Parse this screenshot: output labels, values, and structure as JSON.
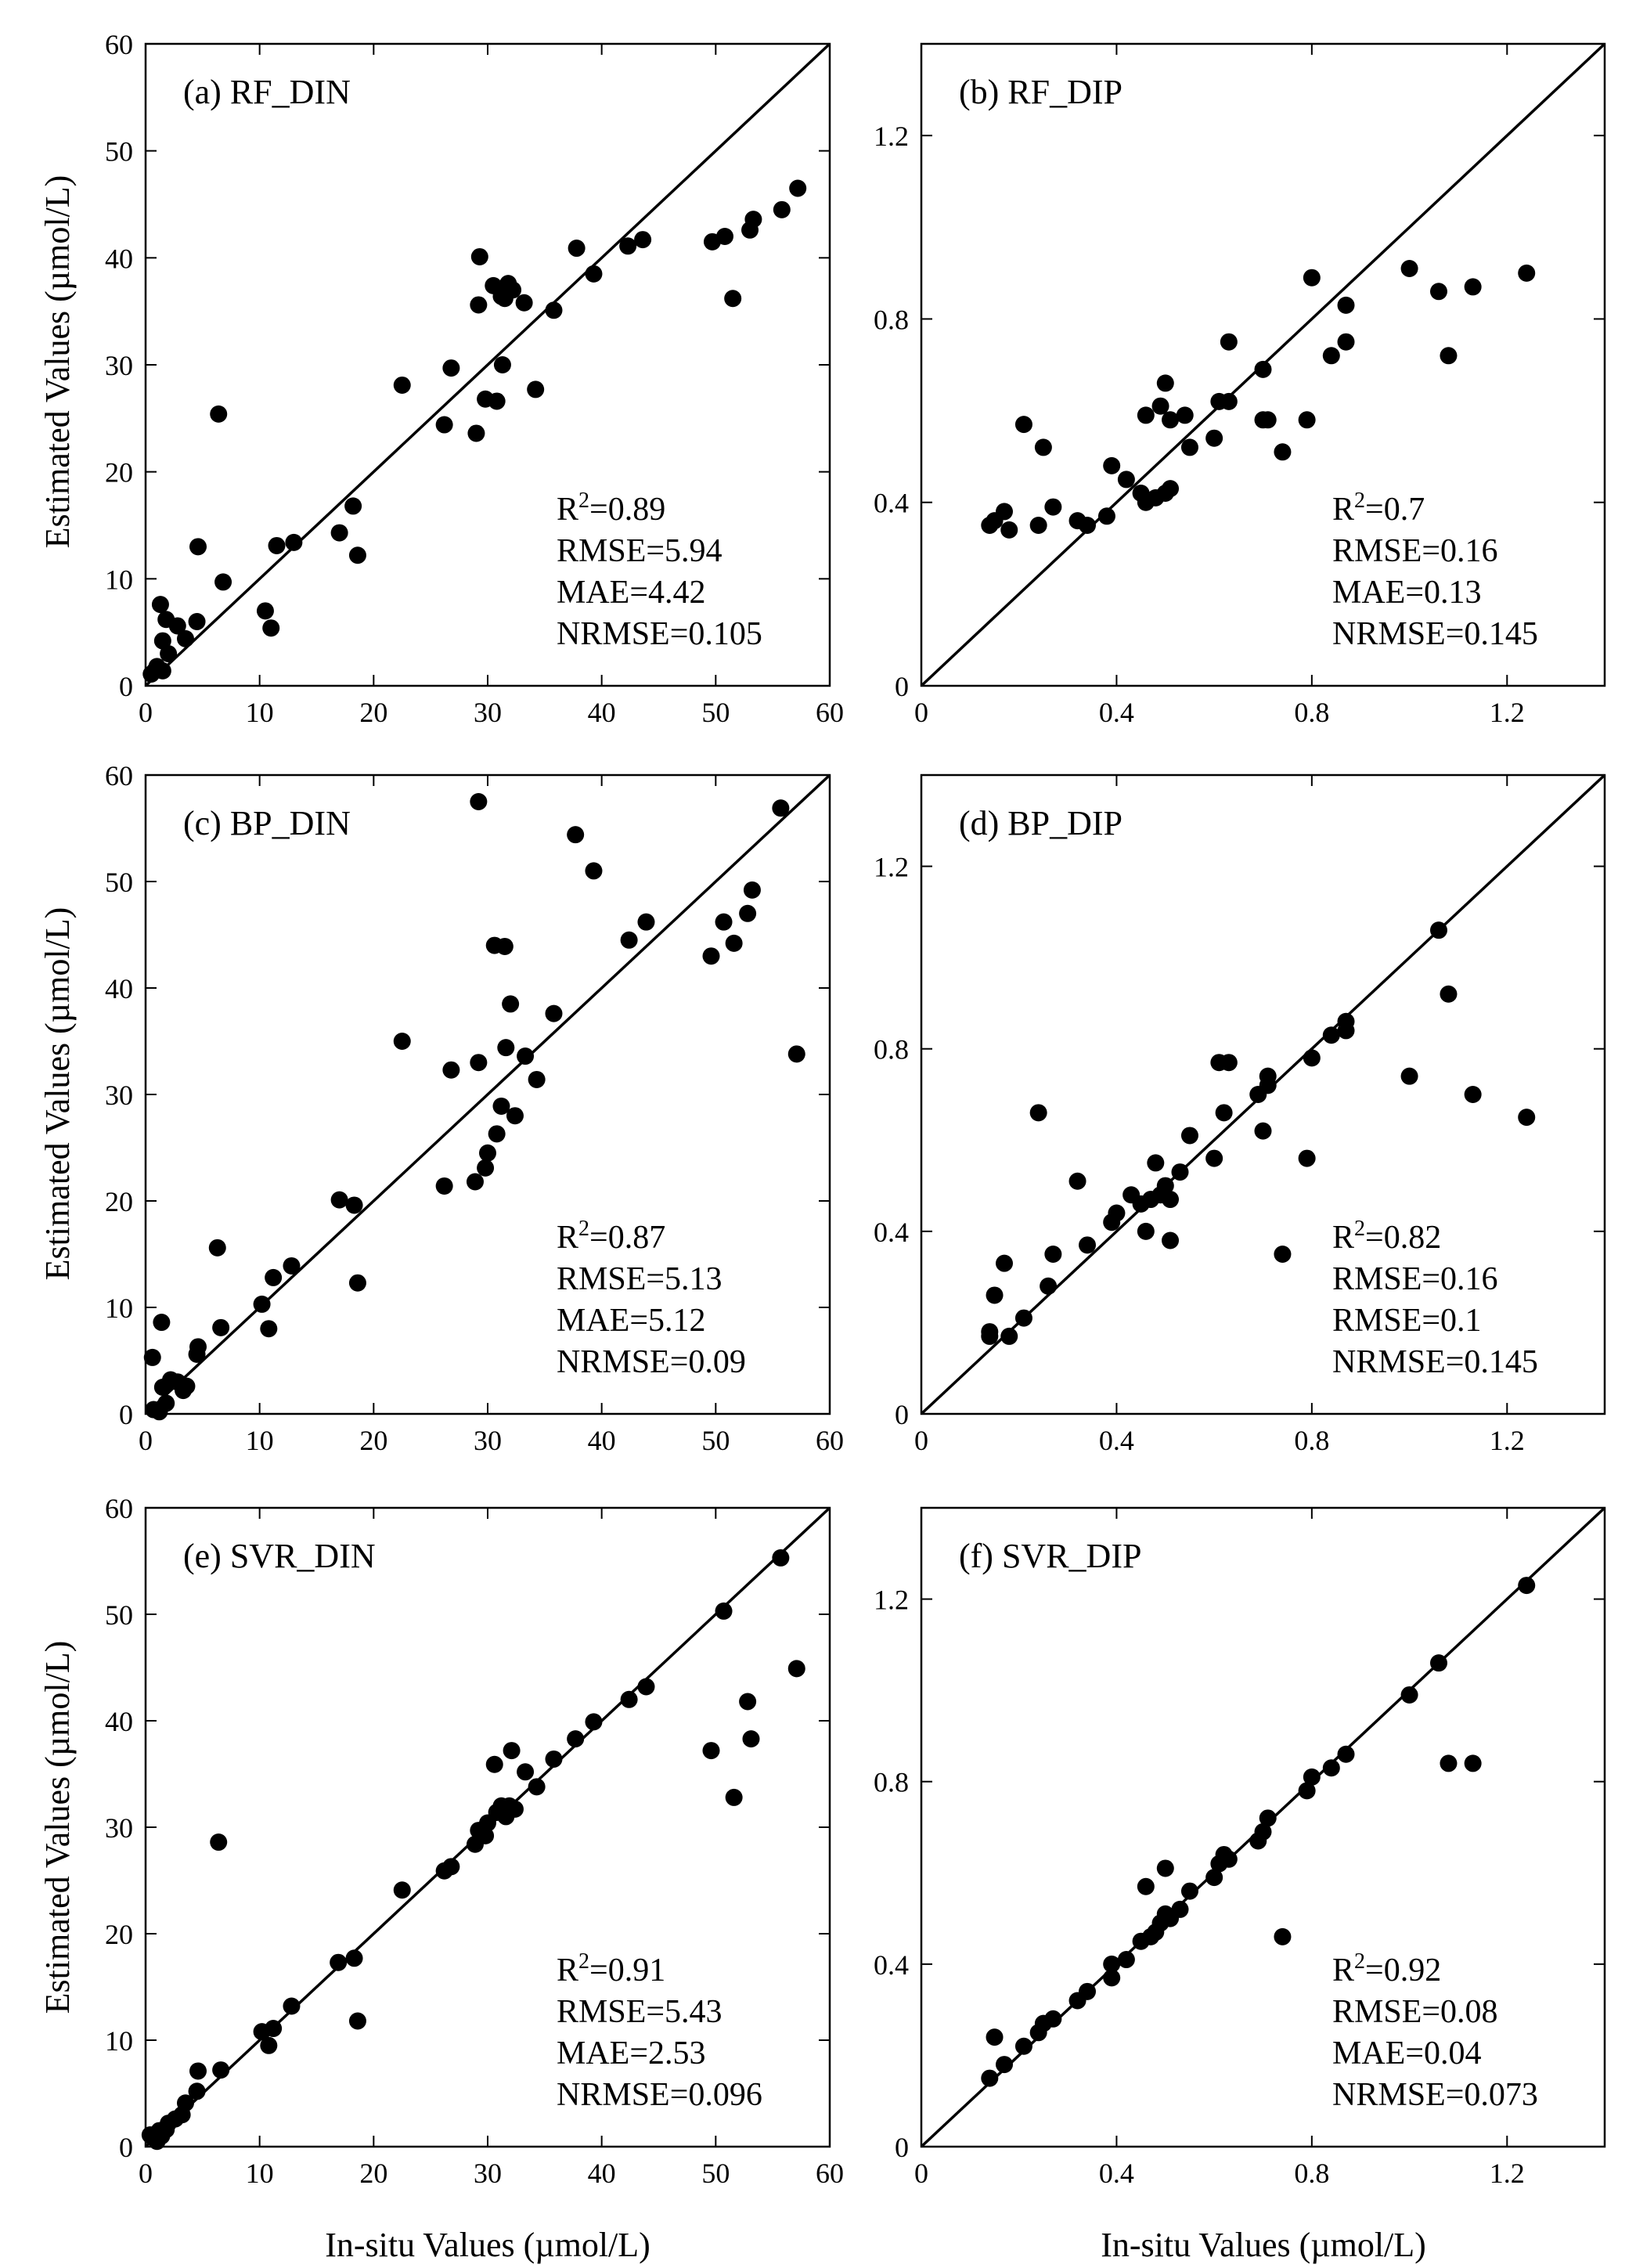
{
  "figure": {
    "xlabel_left": "In-situ Values (µmol/L)",
    "xlabel_right": "In-situ Values (µmol/L)",
    "ylabel_top": "Estimated Values (µmol/L)",
    "ylabel_middle": "Estimated Values (µmol/L)",
    "ylabel_bottom": "Estimated Values (µmol/L)"
  },
  "chart_data": [
    {
      "type": "scatter",
      "title": "(a) RF_DIN",
      "xlim": [
        0,
        60
      ],
      "ylim": [
        0,
        60
      ],
      "xticks": [
        0,
        10,
        20,
        30,
        40,
        50,
        60
      ],
      "yticks": [
        0,
        10,
        20,
        30,
        40,
        50,
        60
      ],
      "xtick_labels": [
        "0",
        "10",
        "20",
        "30",
        "40",
        "50",
        "60"
      ],
      "ytick_labels": [
        "0",
        "10",
        "20",
        "30",
        "40",
        "50",
        "60"
      ],
      "reference_line": "1:1",
      "stats": {
        "r2": "0.89",
        "lines": [
          "RMSE=5.94",
          "MAE=4.42",
          "NRMSE=0.105"
        ]
      },
      "points": [
        [
          0.5,
          1.1
        ],
        [
          0.8,
          1.4
        ],
        [
          1.0,
          1.8
        ],
        [
          1.3,
          7.6
        ],
        [
          1.5,
          4.2
        ],
        [
          1.8,
          6.2
        ],
        [
          1.5,
          1.4
        ],
        [
          2.0,
          3.0
        ],
        [
          2.8,
          5.6
        ],
        [
          3.5,
          4.4
        ],
        [
          4.5,
          6.0
        ],
        [
          4.6,
          13.0
        ],
        [
          6.4,
          25.4
        ],
        [
          6.8,
          9.7
        ],
        [
          10.5,
          7.0
        ],
        [
          11.0,
          5.4
        ],
        [
          11.5,
          13.1
        ],
        [
          13.0,
          13.4
        ],
        [
          17.0,
          14.3
        ],
        [
          18.2,
          16.8
        ],
        [
          18.6,
          12.2
        ],
        [
          22.5,
          28.1
        ],
        [
          26.2,
          24.4
        ],
        [
          26.8,
          29.7
        ],
        [
          29.0,
          23.6
        ],
        [
          29.2,
          35.6
        ],
        [
          29.3,
          40.1
        ],
        [
          29.8,
          26.8
        ],
        [
          30.5,
          37.4
        ],
        [
          30.8,
          26.6
        ],
        [
          31.2,
          36.4
        ],
        [
          31.5,
          36.2
        ],
        [
          31.8,
          37.6
        ],
        [
          32.2,
          37.0
        ],
        [
          31.3,
          30.0
        ],
        [
          33.2,
          35.8
        ],
        [
          34.2,
          27.7
        ],
        [
          35.8,
          35.1
        ],
        [
          37.8,
          40.9
        ],
        [
          39.3,
          38.5
        ],
        [
          42.3,
          41.1
        ],
        [
          43.6,
          41.7
        ],
        [
          49.7,
          41.5
        ],
        [
          50.8,
          42.0
        ],
        [
          51.5,
          36.2
        ],
        [
          53.0,
          42.6
        ],
        [
          53.3,
          43.6
        ],
        [
          55.8,
          44.5
        ],
        [
          57.2,
          46.5
        ]
      ]
    },
    {
      "type": "scatter",
      "title": "(b) RF_DIP",
      "xlim": [
        0,
        1.4
      ],
      "ylim": [
        0,
        1.4
      ],
      "xticks": [
        0,
        0.4,
        0.8,
        1.2
      ],
      "yticks": [
        0,
        0.4,
        0.8,
        1.2
      ],
      "xtick_labels": [
        "0",
        "0.4",
        "0.8",
        "1.2"
      ],
      "ytick_labels": [
        "0",
        "0.4",
        "0.8",
        "1.2"
      ],
      "reference_line": "1:1",
      "stats": {
        "r2": "0.7",
        "lines": [
          "RMSE=0.16",
          "MAE=0.13",
          "NRMSE=0.145"
        ]
      },
      "points": [
        [
          0.14,
          0.35
        ],
        [
          0.15,
          0.36
        ],
        [
          0.17,
          0.38
        ],
        [
          0.18,
          0.34
        ],
        [
          0.21,
          0.57
        ],
        [
          0.24,
          0.35
        ],
        [
          0.25,
          0.52
        ],
        [
          0.27,
          0.39
        ],
        [
          0.32,
          0.36
        ],
        [
          0.34,
          0.35
        ],
        [
          0.38,
          0.37
        ],
        [
          0.39,
          0.48
        ],
        [
          0.42,
          0.45
        ],
        [
          0.45,
          0.42
        ],
        [
          0.46,
          0.4
        ],
        [
          0.46,
          0.59
        ],
        [
          0.48,
          0.41
        ],
        [
          0.49,
          0.61
        ],
        [
          0.5,
          0.42
        ],
        [
          0.5,
          0.66
        ],
        [
          0.51,
          0.58
        ],
        [
          0.51,
          0.43
        ],
        [
          0.54,
          0.59
        ],
        [
          0.55,
          0.52
        ],
        [
          0.6,
          0.54
        ],
        [
          0.61,
          0.62
        ],
        [
          0.63,
          0.62
        ],
        [
          0.63,
          0.75
        ],
        [
          0.7,
          0.69
        ],
        [
          0.7,
          0.58
        ],
        [
          0.71,
          0.58
        ],
        [
          0.74,
          0.51
        ],
        [
          0.79,
          0.58
        ],
        [
          0.8,
          0.89
        ],
        [
          0.84,
          0.72
        ],
        [
          0.87,
          0.83
        ],
        [
          0.87,
          0.75
        ],
        [
          1.0,
          0.91
        ],
        [
          1.06,
          0.86
        ],
        [
          1.08,
          0.72
        ],
        [
          1.13,
          0.87
        ],
        [
          1.24,
          0.9
        ]
      ]
    },
    {
      "type": "scatter",
      "title": "(c) BP_DIN",
      "xlim": [
        0,
        60
      ],
      "ylim": [
        0,
        60
      ],
      "xticks": [
        0,
        10,
        20,
        30,
        40,
        50,
        60
      ],
      "yticks": [
        0,
        10,
        20,
        30,
        40,
        50,
        60
      ],
      "xtick_labels": [
        "0",
        "10",
        "20",
        "30",
        "40",
        "50",
        "60"
      ],
      "ytick_labels": [
        "0",
        "10",
        "20",
        "30",
        "40",
        "50",
        "60"
      ],
      "reference_line": "1:1",
      "stats": {
        "r2": "0.87",
        "lines": [
          "RMSE=5.13",
          "MAE=5.12",
          "NRMSE=0.09"
        ]
      },
      "points": [
        [
          0.6,
          5.3
        ],
        [
          0.7,
          0.4
        ],
        [
          1.2,
          0.2
        ],
        [
          1.4,
          8.6
        ],
        [
          1.5,
          2.5
        ],
        [
          1.8,
          1.0
        ],
        [
          2.2,
          3.2
        ],
        [
          2.8,
          3.0
        ],
        [
          3.3,
          2.2
        ],
        [
          3.6,
          2.6
        ],
        [
          4.5,
          5.6
        ],
        [
          4.6,
          6.3
        ],
        [
          6.3,
          15.6
        ],
        [
          6.6,
          8.1
        ],
        [
          10.2,
          10.3
        ],
        [
          10.8,
          8.0
        ],
        [
          11.2,
          12.8
        ],
        [
          12.8,
          13.9
        ],
        [
          17.0,
          20.1
        ],
        [
          18.3,
          19.6
        ],
        [
          18.6,
          12.3
        ],
        [
          22.5,
          35.0
        ],
        [
          26.2,
          21.4
        ],
        [
          26.8,
          32.3
        ],
        [
          28.9,
          21.8
        ],
        [
          29.2,
          33.0
        ],
        [
          29.2,
          57.5
        ],
        [
          29.8,
          23.1
        ],
        [
          30.0,
          24.5
        ],
        [
          30.6,
          44.0
        ],
        [
          30.8,
          26.3
        ],
        [
          31.2,
          28.9
        ],
        [
          31.5,
          43.9
        ],
        [
          31.6,
          34.4
        ],
        [
          32.0,
          38.5
        ],
        [
          32.4,
          28.0
        ],
        [
          33.3,
          33.6
        ],
        [
          34.3,
          31.4
        ],
        [
          35.8,
          37.6
        ],
        [
          37.7,
          54.4
        ],
        [
          39.3,
          51.0
        ],
        [
          42.4,
          44.5
        ],
        [
          43.9,
          46.2
        ],
        [
          49.6,
          43.0
        ],
        [
          50.7,
          46.2
        ],
        [
          51.6,
          44.2
        ],
        [
          52.8,
          47.0
        ],
        [
          53.2,
          49.2
        ],
        [
          55.7,
          56.9
        ],
        [
          57.1,
          33.8
        ]
      ]
    },
    {
      "type": "scatter",
      "title": "(d) BP_DIP",
      "xlim": [
        0,
        1.4
      ],
      "ylim": [
        0,
        1.4
      ],
      "xticks": [
        0,
        0.4,
        0.8,
        1.2
      ],
      "yticks": [
        0,
        0.4,
        0.8,
        1.2
      ],
      "xtick_labels": [
        "0",
        "0.4",
        "0.8",
        "1.2"
      ],
      "ytick_labels": [
        "0",
        "0.4",
        "0.8",
        "1.2"
      ],
      "reference_line": "1:1",
      "stats": {
        "r2": "0.82",
        "lines": [
          "RMSE=0.16",
          "RMSE=0.1",
          "NRMSE=0.145"
        ]
      },
      "points": [
        [
          0.14,
          0.17
        ],
        [
          0.14,
          0.18
        ],
        [
          0.15,
          0.26
        ],
        [
          0.17,
          0.33
        ],
        [
          0.18,
          0.17
        ],
        [
          0.21,
          0.21
        ],
        [
          0.24,
          0.66
        ],
        [
          0.26,
          0.28
        ],
        [
          0.27,
          0.35
        ],
        [
          0.32,
          0.51
        ],
        [
          0.34,
          0.37
        ],
        [
          0.39,
          0.42
        ],
        [
          0.4,
          0.44
        ],
        [
          0.43,
          0.48
        ],
        [
          0.45,
          0.46
        ],
        [
          0.46,
          0.4
        ],
        [
          0.47,
          0.47
        ],
        [
          0.48,
          0.55
        ],
        [
          0.49,
          0.48
        ],
        [
          0.5,
          0.5
        ],
        [
          0.51,
          0.38
        ],
        [
          0.51,
          0.47
        ],
        [
          0.53,
          0.53
        ],
        [
          0.55,
          0.61
        ],
        [
          0.6,
          0.56
        ],
        [
          0.61,
          0.77
        ],
        [
          0.62,
          0.66
        ],
        [
          0.63,
          0.77
        ],
        [
          0.69,
          0.7
        ],
        [
          0.7,
          0.62
        ],
        [
          0.71,
          0.72
        ],
        [
          0.71,
          0.74
        ],
        [
          0.74,
          0.35
        ],
        [
          0.79,
          0.56
        ],
        [
          0.8,
          0.78
        ],
        [
          0.84,
          0.83
        ],
        [
          0.87,
          0.84
        ],
        [
          0.87,
          0.86
        ],
        [
          1.0,
          0.74
        ],
        [
          1.06,
          1.06
        ],
        [
          1.08,
          0.92
        ],
        [
          1.13,
          0.7
        ],
        [
          1.24,
          0.65
        ]
      ]
    },
    {
      "type": "scatter",
      "title": "(e) SVR_DIN",
      "xlim": [
        0,
        60
      ],
      "ylim": [
        0,
        60
      ],
      "xticks": [
        0,
        10,
        20,
        30,
        40,
        50,
        60
      ],
      "yticks": [
        0,
        10,
        20,
        30,
        40,
        50,
        60
      ],
      "xtick_labels": [
        "0",
        "10",
        "20",
        "30",
        "40",
        "50",
        "60"
      ],
      "ytick_labels": [
        "0",
        "10",
        "20",
        "30",
        "40",
        "50",
        "60"
      ],
      "reference_line": "1:1",
      "stats": {
        "r2": "0.91",
        "lines": [
          "RMSE=5.43",
          "MAE=2.53",
          "NRMSE=0.096"
        ]
      },
      "points": [
        [
          0.4,
          1.1
        ],
        [
          0.7,
          0.8
        ],
        [
          1.0,
          0.5
        ],
        [
          1.2,
          1.5
        ],
        [
          1.4,
          1.0
        ],
        [
          1.8,
          1.6
        ],
        [
          2.0,
          2.2
        ],
        [
          2.6,
          2.6
        ],
        [
          3.2,
          3.0
        ],
        [
          3.5,
          4.1
        ],
        [
          4.5,
          5.2
        ],
        [
          4.6,
          7.1
        ],
        [
          6.4,
          28.6
        ],
        [
          6.6,
          7.2
        ],
        [
          10.2,
          10.8
        ],
        [
          10.8,
          9.5
        ],
        [
          11.2,
          11.1
        ],
        [
          12.8,
          13.2
        ],
        [
          16.9,
          17.3
        ],
        [
          18.3,
          17.7
        ],
        [
          18.6,
          11.8
        ],
        [
          22.5,
          24.1
        ],
        [
          26.2,
          25.9
        ],
        [
          26.8,
          26.3
        ],
        [
          28.9,
          28.4
        ],
        [
          29.2,
          29.7
        ],
        [
          29.8,
          29.2
        ],
        [
          30.0,
          30.4
        ],
        [
          30.6,
          35.9
        ],
        [
          30.8,
          31.4
        ],
        [
          31.2,
          32.0
        ],
        [
          31.6,
          31.0
        ],
        [
          31.9,
          32.0
        ],
        [
          32.1,
          37.2
        ],
        [
          32.4,
          31.7
        ],
        [
          33.3,
          35.2
        ],
        [
          34.3,
          33.8
        ],
        [
          35.8,
          36.4
        ],
        [
          37.7,
          38.3
        ],
        [
          39.3,
          39.9
        ],
        [
          42.4,
          42.0
        ],
        [
          43.9,
          43.2
        ],
        [
          49.6,
          37.2
        ],
        [
          50.7,
          50.3
        ],
        [
          51.6,
          32.8
        ],
        [
          52.8,
          41.8
        ],
        [
          53.1,
          38.3
        ],
        [
          55.7,
          55.3
        ],
        [
          57.1,
          44.9
        ]
      ]
    },
    {
      "type": "scatter",
      "title": "(f) SVR_DIP",
      "xlim": [
        0,
        1.4
      ],
      "ylim": [
        0,
        1.4
      ],
      "xticks": [
        0,
        0.4,
        0.8,
        1.2
      ],
      "yticks": [
        0,
        0.4,
        0.8,
        1.2
      ],
      "xtick_labels": [
        "0",
        "0.4",
        "0.8",
        "1.2"
      ],
      "ytick_labels": [
        "0",
        "0.4",
        "0.8",
        "1.2"
      ],
      "reference_line": "1:1",
      "stats": {
        "r2": "0.92",
        "lines": [
          "RMSE=0.08",
          "MAE=0.04",
          "NRMSE=0.073"
        ]
      },
      "points": [
        [
          0.14,
          0.15
        ],
        [
          0.15,
          0.24
        ],
        [
          0.17,
          0.18
        ],
        [
          0.21,
          0.22
        ],
        [
          0.24,
          0.25
        ],
        [
          0.25,
          0.27
        ],
        [
          0.27,
          0.28
        ],
        [
          0.32,
          0.32
        ],
        [
          0.34,
          0.34
        ],
        [
          0.39,
          0.37
        ],
        [
          0.39,
          0.4
        ],
        [
          0.42,
          0.41
        ],
        [
          0.45,
          0.45
        ],
        [
          0.46,
          0.57
        ],
        [
          0.47,
          0.46
        ],
        [
          0.48,
          0.47
        ],
        [
          0.49,
          0.49
        ],
        [
          0.5,
          0.51
        ],
        [
          0.5,
          0.61
        ],
        [
          0.51,
          0.5
        ],
        [
          0.53,
          0.52
        ],
        [
          0.55,
          0.56
        ],
        [
          0.6,
          0.59
        ],
        [
          0.61,
          0.62
        ],
        [
          0.62,
          0.64
        ],
        [
          0.63,
          0.63
        ],
        [
          0.69,
          0.67
        ],
        [
          0.7,
          0.69
        ],
        [
          0.71,
          0.72
        ],
        [
          0.74,
          0.46
        ],
        [
          0.79,
          0.78
        ],
        [
          0.8,
          0.81
        ],
        [
          0.84,
          0.83
        ],
        [
          0.87,
          0.86
        ],
        [
          1.0,
          0.99
        ],
        [
          1.06,
          1.06
        ],
        [
          1.08,
          0.84
        ],
        [
          1.13,
          0.84
        ],
        [
          1.24,
          1.23
        ]
      ]
    }
  ]
}
